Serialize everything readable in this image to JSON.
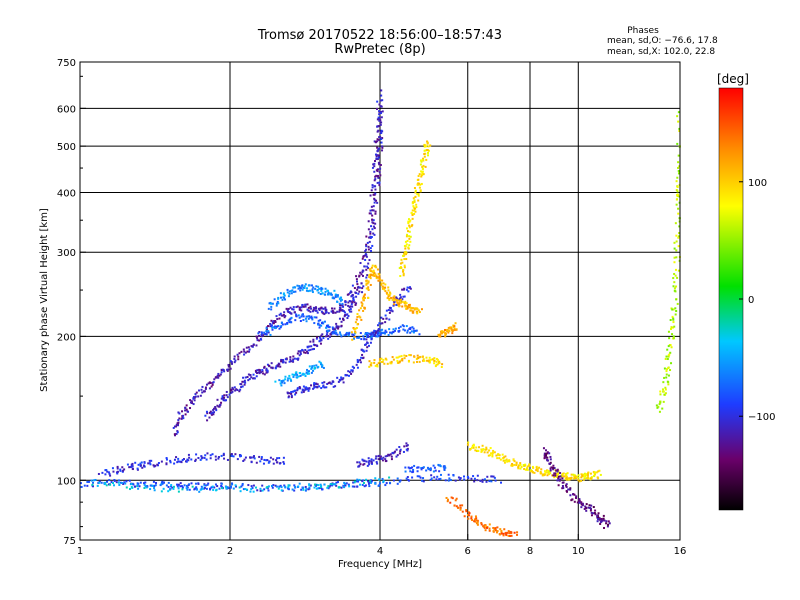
{
  "chart_data": {
    "type": "scatter",
    "title": "Tromsø 20170522 18:56:00–18:57:43",
    "subtitle": "RwPretec (8p)",
    "stats": {
      "heading": "Phases",
      "line_o": "mean, sd,O: −76.6, 17.8",
      "line_x": "mean, sd,X: 102.0, 22.8"
    },
    "xlabel": "Frequency [MHz]",
    "ylabel": "Stationary phase Virtual Height [km]",
    "x_scale": "log",
    "y_scale": "log",
    "xlim": [
      1,
      16
    ],
    "ylim": [
      75,
      750
    ],
    "x_ticks": [
      {
        "value": 1,
        "label": "1"
      },
      {
        "value": 2,
        "label": "2"
      },
      {
        "value": 4,
        "label": "4"
      },
      {
        "value": 6,
        "label": "6"
      },
      {
        "value": 8,
        "label": "8"
      },
      {
        "value": 10,
        "label": "10"
      },
      {
        "value": 16,
        "label": "16"
      }
    ],
    "y_ticks": [
      {
        "value": 75,
        "label": "75"
      },
      {
        "value": 100,
        "label": "100"
      },
      {
        "value": 200,
        "label": "200"
      },
      {
        "value": 300,
        "label": "300"
      },
      {
        "value": 400,
        "label": "400"
      },
      {
        "value": 500,
        "label": "500"
      },
      {
        "value": 600,
        "label": "600"
      },
      {
        "value": 750,
        "label": "750"
      }
    ],
    "grid": true,
    "colorbar": {
      "label": "[deg]",
      "range": [
        -180,
        180
      ],
      "ticks": [
        {
          "value": 100,
          "label": "100"
        },
        {
          "value": 0,
          "label": "0"
        },
        {
          "value": -100,
          "label": "−100"
        }
      ]
    },
    "traces": [
      {
        "phase": -90,
        "points": [
          [
            1.0,
            98
          ],
          [
            1.2,
            99
          ],
          [
            1.4,
            98
          ],
          [
            1.6,
            97
          ],
          [
            1.8,
            97
          ],
          [
            2.0,
            97
          ],
          [
            2.5,
            96
          ],
          [
            3.0,
            97
          ],
          [
            3.5,
            98
          ],
          [
            4.0,
            99
          ],
          [
            5.0,
            101
          ],
          [
            6.0,
            101
          ],
          [
            7.0,
            100
          ]
        ]
      },
      {
        "phase": -40,
        "points": [
          [
            1.05,
            99
          ],
          [
            1.3,
            97
          ],
          [
            1.6,
            96
          ],
          [
            2.2,
            96
          ],
          [
            2.8,
            97
          ],
          [
            3.3,
            98
          ],
          [
            4.2,
            100
          ]
        ]
      },
      {
        "phase": -100,
        "points": [
          [
            1.1,
            103
          ],
          [
            1.25,
            106
          ],
          [
            1.35,
            108
          ],
          [
            1.55,
            110
          ],
          [
            1.75,
            112
          ],
          [
            2.05,
            112
          ],
          [
            2.3,
            110
          ],
          [
            2.6,
            110
          ]
        ]
      },
      {
        "phase": -110,
        "points": [
          [
            1.8,
            135
          ],
          [
            1.9,
            145
          ],
          [
            2.05,
            155
          ],
          [
            2.2,
            165
          ],
          [
            2.35,
            170
          ],
          [
            2.5,
            175
          ],
          [
            2.7,
            180
          ],
          [
            2.9,
            190
          ],
          [
            3.1,
            200
          ],
          [
            3.3,
            210
          ],
          [
            3.5,
            230
          ],
          [
            3.7,
            260
          ],
          [
            3.85,
            330
          ],
          [
            3.95,
            420
          ],
          [
            4.0,
            520
          ],
          [
            4.0,
            650
          ]
        ]
      },
      {
        "phase": -115,
        "points": [
          [
            1.55,
            125
          ],
          [
            1.6,
            138
          ],
          [
            1.7,
            150
          ],
          [
            1.85,
            160
          ],
          [
            2.0,
            175
          ],
          [
            2.2,
            190
          ],
          [
            2.4,
            210
          ],
          [
            2.6,
            225
          ],
          [
            2.8,
            230
          ],
          [
            3.0,
            228
          ],
          [
            3.2,
            225
          ],
          [
            3.4,
            230
          ],
          [
            3.6,
            260
          ],
          [
            3.8,
            320
          ],
          [
            3.9,
            420
          ],
          [
            3.95,
            500
          ],
          [
            4.0,
            600
          ]
        ]
      },
      {
        "phase": -75,
        "points": [
          [
            2.3,
            200
          ],
          [
            2.5,
            210
          ],
          [
            2.75,
            220
          ],
          [
            3.0,
            215
          ],
          [
            3.2,
            205
          ],
          [
            3.5,
            200
          ],
          [
            3.8,
            200
          ],
          [
            4.0,
            203
          ],
          [
            4.4,
            208
          ],
          [
            4.8,
            205
          ]
        ]
      },
      {
        "phase": -60,
        "points": [
          [
            2.4,
            230
          ],
          [
            2.6,
            245
          ],
          [
            2.8,
            255
          ],
          [
            3.0,
            250
          ],
          [
            3.2,
            245
          ],
          [
            3.35,
            235
          ]
        ]
      },
      {
        "phase": -105,
        "points": [
          [
            2.6,
            150
          ],
          [
            2.8,
            155
          ],
          [
            3.0,
            158
          ],
          [
            3.3,
            160
          ],
          [
            3.6,
            175
          ],
          [
            3.8,
            195
          ],
          [
            4.0,
            210
          ],
          [
            4.3,
            235
          ],
          [
            4.6,
            255
          ]
        ]
      },
      {
        "phase": -50,
        "points": [
          [
            2.5,
            160
          ],
          [
            2.7,
            165
          ],
          [
            2.9,
            170
          ],
          [
            3.1,
            175
          ]
        ]
      },
      {
        "phase": 110,
        "points": [
          [
            3.5,
            200
          ],
          [
            3.7,
            230
          ],
          [
            3.8,
            260
          ],
          [
            3.9,
            280
          ],
          [
            4.0,
            260
          ],
          [
            4.2,
            240
          ],
          [
            4.4,
            235
          ],
          [
            4.6,
            230
          ],
          [
            4.8,
            225
          ]
        ]
      },
      {
        "phase": 100,
        "points": [
          [
            3.8,
            175
          ],
          [
            4.2,
            178
          ],
          [
            4.6,
            180
          ],
          [
            5.0,
            178
          ],
          [
            5.3,
            175
          ]
        ]
      },
      {
        "phase": 90,
        "points": [
          [
            4.4,
            270
          ],
          [
            4.5,
            300
          ],
          [
            4.6,
            340
          ],
          [
            4.7,
            380
          ],
          [
            4.8,
            420
          ],
          [
            4.9,
            470
          ],
          [
            5.0,
            510
          ]
        ]
      },
      {
        "phase": 120,
        "points": [
          [
            5.3,
            200
          ],
          [
            5.5,
            205
          ],
          [
            5.7,
            210
          ]
        ]
      },
      {
        "phase": -110,
        "points": [
          [
            3.6,
            108
          ],
          [
            3.9,
            110
          ],
          [
            4.2,
            112
          ],
          [
            4.6,
            118
          ]
        ]
      },
      {
        "phase": -80,
        "points": [
          [
            4.5,
            105
          ],
          [
            5.0,
            106
          ],
          [
            5.5,
            106
          ]
        ]
      },
      {
        "phase": 140,
        "points": [
          [
            5.5,
            92
          ],
          [
            6.0,
            85
          ],
          [
            6.5,
            80
          ],
          [
            7.0,
            78
          ],
          [
            7.5,
            77
          ]
        ]
      },
      {
        "phase": 90,
        "points": [
          [
            6.0,
            118
          ],
          [
            6.5,
            116
          ],
          [
            7.0,
            112
          ],
          [
            7.5,
            108
          ],
          [
            8.0,
            106
          ],
          [
            8.5,
            104
          ],
          [
            9.0,
            103
          ],
          [
            9.5,
            102
          ],
          [
            10.0,
            101
          ],
          [
            10.5,
            102
          ],
          [
            11.0,
            103
          ]
        ]
      },
      {
        "phase": -130,
        "points": [
          [
            8.5,
            115
          ],
          [
            8.8,
            108
          ],
          [
            9.2,
            100
          ],
          [
            9.8,
            92
          ],
          [
            10.4,
            88
          ],
          [
            11.0,
            84
          ],
          [
            11.5,
            80
          ]
        ]
      },
      {
        "phase": 60,
        "points": [
          [
            14.5,
            140
          ],
          [
            15.0,
            160
          ],
          [
            15.3,
            190
          ],
          [
            15.6,
            230
          ],
          [
            15.8,
            300
          ],
          [
            15.9,
            380
          ],
          [
            16.0,
            450
          ],
          [
            16.0,
            600
          ]
        ]
      }
    ]
  }
}
